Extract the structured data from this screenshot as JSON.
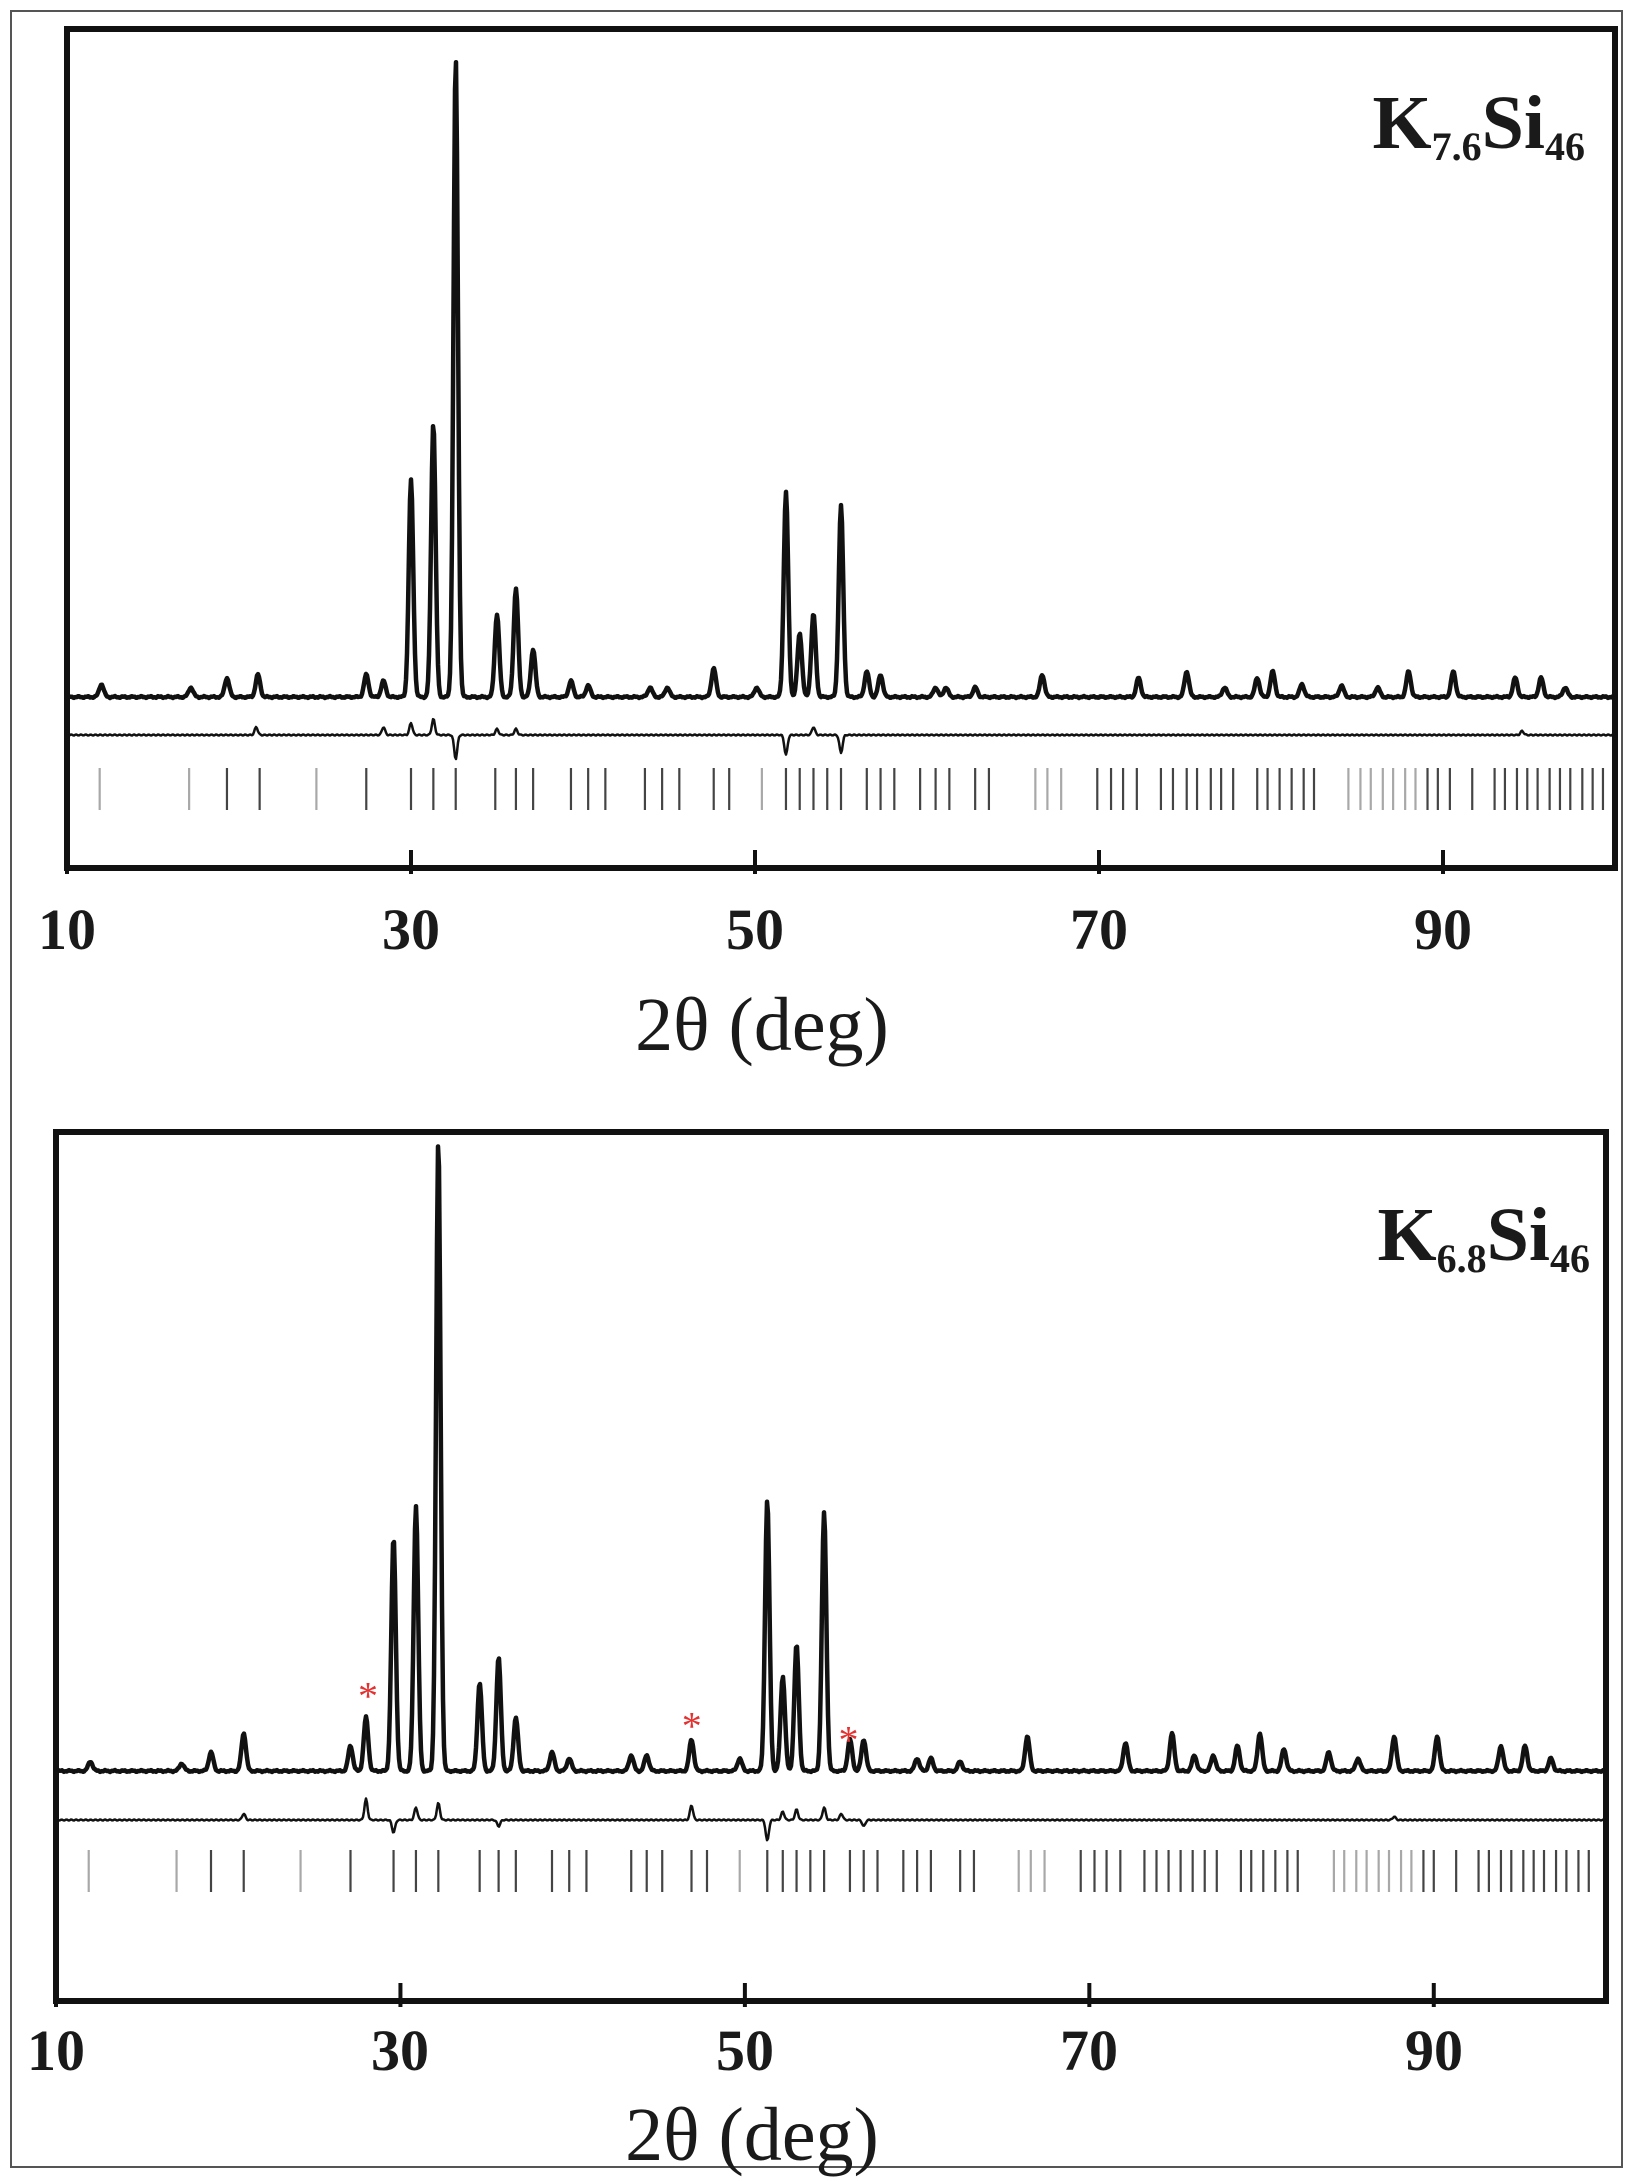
{
  "chart_data": [
    {
      "type": "line",
      "title": "K₇.₆Si₄₆",
      "title_parts": {
        "base": "K",
        "sub1": "7.6",
        "mid": "Si",
        "sub2": "46"
      },
      "xlabel": "2θ (deg)",
      "xlim": [
        10,
        100
      ],
      "x_ticks": [
        "10",
        "30",
        "50",
        "70",
        "90"
      ],
      "series": [
        {
          "peaks": [
            {
              "x": 12.0,
              "h": 0.02
            },
            {
              "x": 17.2,
              "h": 0.015
            },
            {
              "x": 19.3,
              "h": 0.03
            },
            {
              "x": 21.1,
              "h": 0.035
            },
            {
              "x": 27.4,
              "h": 0.035
            },
            {
              "x": 28.4,
              "h": 0.025
            },
            {
              "x": 30.0,
              "h": 0.34
            },
            {
              "x": 31.3,
              "h": 0.43
            },
            {
              "x": 32.6,
              "h": 1.0
            },
            {
              "x": 35.0,
              "h": 0.13
            },
            {
              "x": 36.1,
              "h": 0.17
            },
            {
              "x": 37.1,
              "h": 0.075
            },
            {
              "x": 39.3,
              "h": 0.025
            },
            {
              "x": 40.3,
              "h": 0.018
            },
            {
              "x": 43.9,
              "h": 0.015
            },
            {
              "x": 44.9,
              "h": 0.015
            },
            {
              "x": 47.6,
              "h": 0.045
            },
            {
              "x": 50.1,
              "h": 0.015
            },
            {
              "x": 51.8,
              "h": 0.32
            },
            {
              "x": 52.6,
              "h": 0.1
            },
            {
              "x": 53.4,
              "h": 0.13
            },
            {
              "x": 55.0,
              "h": 0.3
            },
            {
              "x": 56.5,
              "h": 0.04
            },
            {
              "x": 57.3,
              "h": 0.035
            },
            {
              "x": 60.5,
              "h": 0.015
            },
            {
              "x": 61.1,
              "h": 0.015
            },
            {
              "x": 62.8,
              "h": 0.015
            },
            {
              "x": 66.7,
              "h": 0.035
            },
            {
              "x": 72.3,
              "h": 0.03
            },
            {
              "x": 75.1,
              "h": 0.04
            },
            {
              "x": 77.3,
              "h": 0.015
            },
            {
              "x": 79.2,
              "h": 0.03
            },
            {
              "x": 80.1,
              "h": 0.04
            },
            {
              "x": 81.8,
              "h": 0.02
            },
            {
              "x": 84.1,
              "h": 0.018
            },
            {
              "x": 86.2,
              "h": 0.015
            },
            {
              "x": 88.0,
              "h": 0.04
            },
            {
              "x": 90.6,
              "h": 0.04
            },
            {
              "x": 94.2,
              "h": 0.03
            },
            {
              "x": 95.7,
              "h": 0.03
            },
            {
              "x": 97.1,
              "h": 0.015
            }
          ]
        },
        {
          "difference": [
            {
              "x": 21.0,
              "d": 0.02
            },
            {
              "x": 28.4,
              "d": 0.02
            },
            {
              "x": 30.0,
              "d": 0.03
            },
            {
              "x": 31.3,
              "d": 0.04
            },
            {
              "x": 32.6,
              "d": -0.06
            },
            {
              "x": 35.0,
              "d": 0.015
            },
            {
              "x": 36.1,
              "d": 0.015
            },
            {
              "x": 51.8,
              "d": -0.05
            },
            {
              "x": 53.4,
              "d": 0.02
            },
            {
              "x": 55.0,
              "d": -0.045
            },
            {
              "x": 94.6,
              "d": 0.01
            }
          ]
        },
        {
          "reflections": [
            11.9,
            17.1,
            19.3,
            21.2,
            24.5,
            27.4,
            30.0,
            31.3,
            32.6,
            34.9,
            36.1,
            37.1,
            39.3,
            40.3,
            41.3,
            43.6,
            44.6,
            45.6,
            47.6,
            48.5,
            50.4,
            51.8,
            52.6,
            53.4,
            54.2,
            55.0,
            56.5,
            57.3,
            58.1,
            59.6,
            60.5,
            61.3,
            62.8,
            63.6,
            66.3,
            67.0,
            67.8,
            69.9,
            70.7,
            71.4,
            72.2,
            73.6,
            74.3,
            75.1,
            75.7,
            76.5,
            77.1,
            77.8,
            79.2,
            79.8,
            80.5,
            81.2,
            81.9,
            82.5,
            84.5,
            85.2,
            85.8,
            86.5,
            87.1,
            87.8,
            88.4,
            89.1,
            89.7,
            90.4,
            91.7,
            93.0,
            93.6,
            94.3,
            94.9,
            95.5,
            96.2,
            96.8,
            97.4,
            98.1,
            98.7,
            99.3
          ],
          "gray": [
            11.9,
            17.1,
            24.5,
            50.4,
            66.3,
            67.0,
            67.8,
            84.5,
            85.2,
            85.8,
            86.5,
            87.1,
            87.8,
            88.4
          ]
        }
      ]
    },
    {
      "type": "line",
      "title": "K₆.₈Si₄₆",
      "title_parts": {
        "base": "K",
        "sub1": "6.8",
        "mid": "Si",
        "sub2": "46"
      },
      "xlabel": "2θ (deg)",
      "xlim": [
        10,
        100
      ],
      "x_ticks": [
        "10",
        "30",
        "50",
        "70",
        "90"
      ],
      "annotations": [
        {
          "text": "*",
          "x": 28.0
        },
        {
          "text": "*",
          "x": 46.8
        },
        {
          "text": "*",
          "x": 55.9
        }
      ],
      "series": [
        {
          "peaks": [
            {
              "x": 12.0,
              "h": 0.015
            },
            {
              "x": 17.3,
              "h": 0.012
            },
            {
              "x": 19.0,
              "h": 0.03
            },
            {
              "x": 20.9,
              "h": 0.06
            },
            {
              "x": 27.1,
              "h": 0.04
            },
            {
              "x": 28.0,
              "h": 0.085
            },
            {
              "x": 29.6,
              "h": 0.37
            },
            {
              "x": 30.9,
              "h": 0.42
            },
            {
              "x": 32.2,
              "h": 1.0
            },
            {
              "x": 34.6,
              "h": 0.14
            },
            {
              "x": 35.7,
              "h": 0.18
            },
            {
              "x": 36.7,
              "h": 0.085
            },
            {
              "x": 38.8,
              "h": 0.03
            },
            {
              "x": 39.8,
              "h": 0.02
            },
            {
              "x": 43.4,
              "h": 0.025
            },
            {
              "x": 44.3,
              "h": 0.025
            },
            {
              "x": 46.9,
              "h": 0.05
            },
            {
              "x": 49.7,
              "h": 0.02
            },
            {
              "x": 51.3,
              "h": 0.43
            },
            {
              "x": 52.2,
              "h": 0.15
            },
            {
              "x": 53.0,
              "h": 0.2
            },
            {
              "x": 54.6,
              "h": 0.41
            },
            {
              "x": 56.1,
              "h": 0.05
            },
            {
              "x": 56.9,
              "h": 0.05
            },
            {
              "x": 60.0,
              "h": 0.02
            },
            {
              "x": 60.8,
              "h": 0.02
            },
            {
              "x": 62.5,
              "h": 0.015
            },
            {
              "x": 66.4,
              "h": 0.055
            },
            {
              "x": 72.1,
              "h": 0.045
            },
            {
              "x": 74.8,
              "h": 0.06
            },
            {
              "x": 76.1,
              "h": 0.025
            },
            {
              "x": 77.2,
              "h": 0.025
            },
            {
              "x": 78.6,
              "h": 0.04
            },
            {
              "x": 79.9,
              "h": 0.06
            },
            {
              "x": 81.3,
              "h": 0.035
            },
            {
              "x": 83.9,
              "h": 0.03
            },
            {
              "x": 85.6,
              "h": 0.02
            },
            {
              "x": 87.7,
              "h": 0.055
            },
            {
              "x": 90.2,
              "h": 0.055
            },
            {
              "x": 93.9,
              "h": 0.04
            },
            {
              "x": 95.3,
              "h": 0.04
            },
            {
              "x": 96.8,
              "h": 0.02
            }
          ]
        },
        {
          "difference": [
            {
              "x": 20.9,
              "d": 0.015
            },
            {
              "x": 28.0,
              "d": 0.05
            },
            {
              "x": 29.6,
              "d": -0.03
            },
            {
              "x": 30.9,
              "d": 0.03
            },
            {
              "x": 32.2,
              "d": 0.04
            },
            {
              "x": 35.7,
              "d": -0.015
            },
            {
              "x": 46.9,
              "d": 0.035
            },
            {
              "x": 51.3,
              "d": -0.05
            },
            {
              "x": 52.2,
              "d": 0.02
            },
            {
              "x": 53.0,
              "d": 0.025
            },
            {
              "x": 54.6,
              "d": 0.03
            },
            {
              "x": 55.6,
              "d": 0.015
            },
            {
              "x": 56.9,
              "d": -0.015
            },
            {
              "x": 87.7,
              "d": 0.008
            }
          ]
        },
        {
          "reflections": [
            11.9,
            17.0,
            19.0,
            20.9,
            24.2,
            27.1,
            29.6,
            30.9,
            32.2,
            34.6,
            35.7,
            36.7,
            38.8,
            39.8,
            40.8,
            43.4,
            44.3,
            45.2,
            46.9,
            47.8,
            49.7,
            51.3,
            52.2,
            53.0,
            53.8,
            54.6,
            56.1,
            56.9,
            57.7,
            59.2,
            60.0,
            60.8,
            62.5,
            63.3,
            65.9,
            66.6,
            67.4,
            69.5,
            70.3,
            71.0,
            71.8,
            73.2,
            73.9,
            74.6,
            75.3,
            76.0,
            76.7,
            77.4,
            78.8,
            79.4,
            80.1,
            80.8,
            81.5,
            82.1,
            84.2,
            84.8,
            85.5,
            86.1,
            86.8,
            87.4,
            88.1,
            88.7,
            89.4,
            90.0,
            91.3,
            92.6,
            93.2,
            93.9,
            94.5,
            95.2,
            95.8,
            96.4,
            97.1,
            97.7,
            98.4,
            99.0
          ],
          "gray": [
            11.9,
            17.0,
            24.2,
            49.7,
            65.9,
            66.6,
            67.4,
            84.2,
            84.8,
            85.5,
            86.1,
            86.8,
            87.4,
            88.1,
            88.7
          ]
        }
      ]
    }
  ],
  "colors": {
    "trace": "#111111",
    "reflection": "#444444",
    "reflection_gray": "#a8a8a8",
    "asterisk": "#e53030"
  }
}
